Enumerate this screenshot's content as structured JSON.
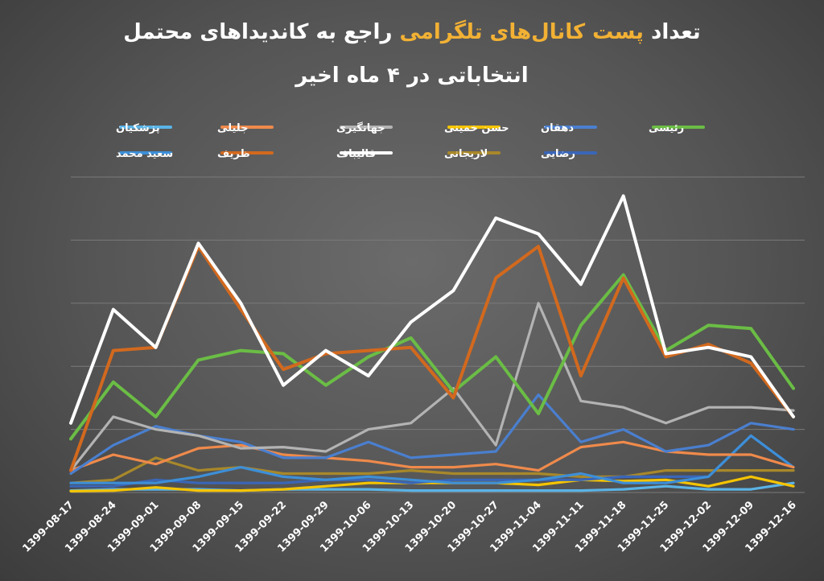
{
  "chart_data": {
    "type": "line",
    "title_part1": "تعداد",
    "title_highlight": "پست کانال‌های تلگرامی",
    "title_part2": "راجع به کاندیداهای محتمل",
    "title_line2": "انتخاباتی در ۴ ماه اخیر",
    "highlight_color": "#f2b134",
    "xlabel": "",
    "ylabel": "",
    "grid": true,
    "ylim": [
      0,
      500
    ],
    "legend_position": "top",
    "x": [
      "1399-08-17",
      "1399-08-24",
      "1399-09-01",
      "1399-09-08",
      "1399-09-15",
      "1399-09-22",
      "1399-09-29",
      "1399-10-06",
      "1399-10-13",
      "1399-10-20",
      "1399-10-27",
      "1399-11-04",
      "1399-11-11",
      "1399-11-18",
      "1399-11-25",
      "1399-12-02",
      "1399-12-09",
      "1399-12-16"
    ],
    "series": [
      {
        "name": "پزشکیان",
        "color": "#5ab3e6",
        "values": [
          3,
          5,
          5,
          5,
          3,
          5,
          5,
          5,
          3,
          3,
          3,
          3,
          3,
          5,
          10,
          5,
          5,
          15
        ]
      },
      {
        "name": "جلیلی",
        "color": "#ef8a4b",
        "values": [
          35,
          60,
          45,
          70,
          75,
          60,
          55,
          50,
          40,
          40,
          45,
          35,
          72,
          80,
          65,
          60,
          60,
          40
        ]
      },
      {
        "name": "جهانگیری",
        "color": "#b3b3b3",
        "values": [
          35,
          120,
          100,
          90,
          70,
          72,
          65,
          100,
          110,
          165,
          75,
          300,
          145,
          135,
          110,
          135,
          135,
          130
        ]
      },
      {
        "name": "حسن خمینی",
        "color": "#f5c400",
        "values": [
          2,
          3,
          8,
          3,
          3,
          5,
          10,
          15,
          15,
          15,
          15,
          12,
          20,
          18,
          20,
          10,
          25,
          10
        ]
      },
      {
        "name": "دهقان",
        "color": "#4a7fcf",
        "values": [
          30,
          75,
          105,
          90,
          80,
          55,
          55,
          80,
          55,
          60,
          65,
          155,
          80,
          100,
          65,
          75,
          110,
          100
        ]
      },
      {
        "name": "رئیسی",
        "color": "#6bbd45",
        "values": [
          85,
          175,
          120,
          210,
          225,
          220,
          170,
          215,
          245,
          160,
          215,
          125,
          265,
          345,
          225,
          265,
          260,
          165
        ]
      },
      {
        "name": "سعید محمد",
        "color": "#3d8fd8",
        "values": [
          15,
          15,
          15,
          25,
          40,
          25,
          20,
          25,
          20,
          15,
          15,
          20,
          30,
          15,
          15,
          25,
          90,
          40
        ]
      },
      {
        "name": "ظریف",
        "color": "#d2691e",
        "values": [
          35,
          225,
          230,
          390,
          290,
          195,
          220,
          225,
          230,
          150,
          340,
          390,
          185,
          340,
          215,
          235,
          205,
          120
        ]
      },
      {
        "name": "قالیباف",
        "color": "#ffffff",
        "values": [
          110,
          290,
          230,
          395,
          300,
          170,
          225,
          185,
          270,
          320,
          435,
          410,
          330,
          470,
          220,
          230,
          215,
          120
        ]
      },
      {
        "name": "لاریجانی",
        "color": "#a8882a",
        "values": [
          15,
          20,
          55,
          35,
          40,
          30,
          30,
          30,
          35,
          30,
          30,
          30,
          25,
          25,
          35,
          35,
          35,
          35
        ]
      },
      {
        "name": "رضایی",
        "color": "#3a66b8",
        "values": [
          10,
          10,
          20,
          15,
          15,
          15,
          20,
          20,
          15,
          20,
          20,
          20,
          20,
          25,
          25,
          25,
          90,
          40
        ]
      }
    ]
  }
}
